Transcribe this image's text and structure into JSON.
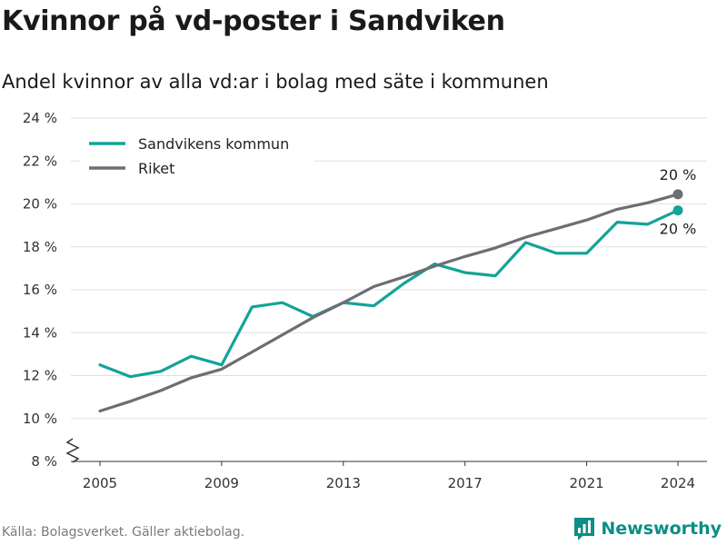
{
  "header": {
    "title": "Kvinnor på vd-poster i Sandviken",
    "subtitle": "Andel kvinnor av alla vd:ar i bolag med säte i kommunen"
  },
  "footer": {
    "source": "Källa: Bolagsverket. Gäller aktiebolag.",
    "brand": "Newsworthy"
  },
  "colors": {
    "sandviken": "#13a398",
    "riket": "#6e6d73",
    "grid": "#e0e0e0"
  },
  "chart_data": {
    "type": "line",
    "x": [
      2005,
      2006,
      2007,
      2008,
      2009,
      2010,
      2011,
      2012,
      2013,
      2014,
      2015,
      2016,
      2017,
      2018,
      2019,
      2020,
      2021,
      2022,
      2023,
      2024
    ],
    "series": [
      {
        "name": "Sandvikens kommun",
        "color": "#13a398",
        "values": [
          12.5,
          11.95,
          12.2,
          12.9,
          12.5,
          15.2,
          15.4,
          14.75,
          15.4,
          15.25,
          16.3,
          17.2,
          16.8,
          16.65,
          18.2,
          17.7,
          17.7,
          19.15,
          19.05,
          19.7
        ]
      },
      {
        "name": "Riket",
        "color": "#6e6d73",
        "values": [
          10.35,
          10.8,
          11.3,
          11.9,
          12.3,
          13.1,
          13.9,
          14.7,
          15.4,
          16.15,
          16.6,
          17.1,
          17.55,
          17.95,
          18.45,
          18.85,
          19.25,
          19.75,
          20.05,
          20.45
        ]
      }
    ],
    "x_ticks": [
      2005,
      2009,
      2013,
      2017,
      2021,
      2024
    ],
    "x_tick_labels": [
      "2005",
      "2009",
      "2013",
      "2017",
      "2021",
      "2024"
    ],
    "y_ticks": [
      8,
      10,
      12,
      14,
      16,
      18,
      20,
      22,
      24
    ],
    "y_tick_labels": [
      "8 %",
      "10 %",
      "12 %",
      "14 %",
      "16 %",
      "18 %",
      "20 %",
      "22 %",
      "24 %"
    ],
    "ylim": [
      8,
      24
    ],
    "xlim": [
      2005,
      2024
    ],
    "end_labels": {
      "riket": "20 %",
      "sandviken": "20 %"
    },
    "grid": true,
    "legend": "top-left",
    "axis_break": true
  }
}
